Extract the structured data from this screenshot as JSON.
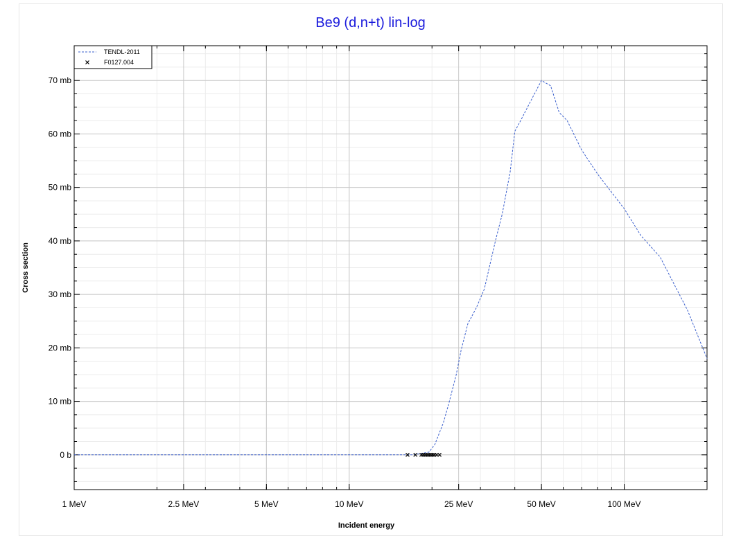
{
  "chart_data": {
    "type": "line",
    "title": "Be9 (d,n+t) lin-log",
    "xlabel": "Incident energy",
    "ylabel": "Cross section",
    "x_scale": "log",
    "x_unit": "MeV",
    "xlim": [
      1,
      200
    ],
    "ylim": [
      -6.5,
      76.5
    ],
    "y_unit": "mb",
    "x_ticks": [
      {
        "value": 1,
        "label": "1 MeV"
      },
      {
        "value": 2.5,
        "label": "2.5 MeV"
      },
      {
        "value": 5,
        "label": "5 MeV"
      },
      {
        "value": 10,
        "label": "10 MeV"
      },
      {
        "value": 25,
        "label": "25 MeV"
      },
      {
        "value": 50,
        "label": "50 MeV"
      },
      {
        "value": 100,
        "label": "100 MeV"
      }
    ],
    "y_ticks": [
      {
        "value": 0,
        "label": "0 b"
      },
      {
        "value": 10,
        "label": "10 mb"
      },
      {
        "value": 20,
        "label": "20 mb"
      },
      {
        "value": 30,
        "label": "30 mb"
      },
      {
        "value": 40,
        "label": "40 mb"
      },
      {
        "value": 50,
        "label": "50 mb"
      },
      {
        "value": 60,
        "label": "60 mb"
      },
      {
        "value": 70,
        "label": "70 mb"
      }
    ],
    "grid": true,
    "legend_position": "top-left",
    "series": [
      {
        "name": "TENDL-2011",
        "style": "dashed-line",
        "color": "#3a5fcd",
        "points": [
          [
            1,
            0
          ],
          [
            17,
            0
          ],
          [
            19.5,
            0.5
          ],
          [
            20.5,
            2
          ],
          [
            22,
            6
          ],
          [
            23,
            9.5
          ],
          [
            24.5,
            15
          ],
          [
            25.5,
            19.5
          ],
          [
            27,
            24.5
          ],
          [
            29,
            27.5
          ],
          [
            31,
            31
          ],
          [
            34,
            40
          ],
          [
            36,
            45
          ],
          [
            38.5,
            53
          ],
          [
            40,
            60.5
          ],
          [
            42,
            62.5
          ],
          [
            45,
            65.5
          ],
          [
            50,
            70
          ],
          [
            54,
            69
          ],
          [
            58,
            64
          ],
          [
            62,
            62.5
          ],
          [
            70,
            57
          ],
          [
            80,
            52.5
          ],
          [
            100,
            46
          ],
          [
            115,
            41
          ],
          [
            135,
            37
          ],
          [
            170,
            27
          ],
          [
            200,
            18
          ]
        ]
      },
      {
        "name": "F0127.004",
        "style": "x-marker",
        "color": "#000000",
        "points": [
          [
            16.3,
            0
          ],
          [
            17.4,
            0
          ],
          [
            18.3,
            0
          ],
          [
            18.6,
            0
          ],
          [
            18.9,
            0
          ],
          [
            19.2,
            0
          ],
          [
            19.5,
            0
          ],
          [
            19.8,
            0
          ],
          [
            20.1,
            0
          ],
          [
            20.4,
            0
          ],
          [
            20.8,
            0
          ],
          [
            21.3,
            0
          ]
        ]
      }
    ]
  }
}
